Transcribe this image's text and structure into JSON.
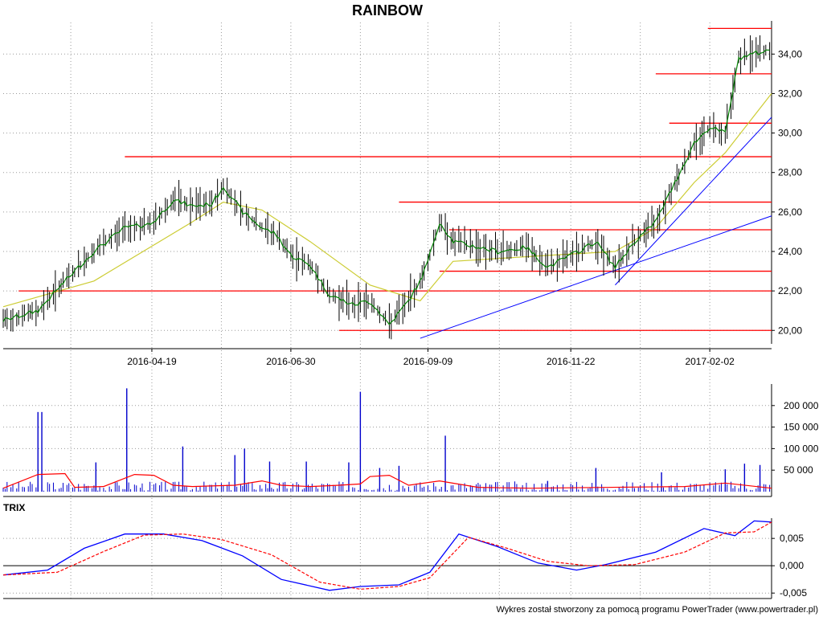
{
  "chart_data": [
    {
      "type": "line",
      "title": "RAINBOW",
      "xlabel": "",
      "ylabel": "",
      "x_tick_labels": [
        "2016-04-19",
        "2016-06-30",
        "2016-09-09",
        "2016-11-22",
        "2017-02-02"
      ],
      "y_tick_labels": [
        "20,00",
        "22,00",
        "24,00",
        "26,00",
        "28,00",
        "30,00",
        "32,00",
        "34,00"
      ],
      "ylim": [
        19.4,
        35.6
      ],
      "grid": true,
      "colors": {
        "price_bars": "#000000",
        "sma_short": "#008000",
        "sma_long": "#cccc33",
        "horizontal_levels": "#ff0000",
        "trendlines": "#0000ff"
      },
      "horizontal_levels": [
        20.0,
        22.0,
        23.0,
        25.1,
        26.5,
        28.8,
        30.5,
        33.0,
        35.3
      ],
      "price_path": {
        "x": [
          "2016-02-02",
          "2016-02-20",
          "2016-03-05",
          "2016-03-20",
          "2016-04-05",
          "2016-04-19",
          "2016-04-30",
          "2016-05-10",
          "2016-05-20",
          "2016-05-26",
          "2016-06-05",
          "2016-06-15",
          "2016-06-22",
          "2016-06-30",
          "2016-07-10",
          "2016-07-20",
          "2016-08-01",
          "2016-08-10",
          "2016-08-20",
          "2016-08-30",
          "2016-09-05",
          "2016-09-09",
          "2016-09-15",
          "2016-09-22",
          "2016-10-01",
          "2016-10-15",
          "2016-10-30",
          "2016-11-10",
          "2016-11-22",
          "2016-12-05",
          "2016-12-15",
          "2016-12-25",
          "2017-01-05",
          "2017-01-15",
          "2017-01-25",
          "2017-02-02",
          "2017-02-10",
          "2017-02-17",
          "2017-02-24",
          "2017-03-06"
        ],
        "close": [
          20.5,
          21.0,
          22.5,
          24.0,
          25.2,
          25.4,
          26.6,
          26.3,
          26.4,
          27.3,
          26.0,
          25.2,
          24.9,
          23.8,
          23.3,
          21.8,
          21.3,
          21.5,
          20.3,
          21.5,
          22.5,
          23.5,
          25.5,
          24.5,
          24.3,
          24.0,
          24.2,
          23.2,
          23.8,
          24.5,
          23.2,
          24.5,
          25.5,
          27.5,
          29.5,
          30.3,
          30.0,
          33.8,
          34.0,
          34.2
        ]
      },
      "sma_long": {
        "x": [
          "2016-02-02",
          "2016-03-20",
          "2016-05-10",
          "2016-05-26",
          "2016-06-15",
          "2016-07-10",
          "2016-08-10",
          "2016-09-05",
          "2016-09-22",
          "2016-11-10",
          "2016-12-15",
          "2017-01-05",
          "2017-01-25",
          "2017-02-10",
          "2017-03-06"
        ],
        "y": [
          21.2,
          22.5,
          25.5,
          26.5,
          26.1,
          24.5,
          22.3,
          21.5,
          23.5,
          23.8,
          24.0,
          25.2,
          27.5,
          29.0,
          32.0
        ]
      },
      "trendlines": [
        {
          "x": [
            "2016-09-05",
            "2017-03-06"
          ],
          "y": [
            19.6,
            25.8
          ]
        },
        {
          "x": [
            "2016-12-15",
            "2017-03-06"
          ],
          "y": [
            22.3,
            30.8
          ]
        }
      ]
    },
    {
      "type": "bar",
      "y_tick_labels": [
        "50 000",
        "100 000",
        "150 000",
        "200 000"
      ],
      "ylim": [
        0,
        250000
      ],
      "colors": {
        "volume_bars": "#0000cc",
        "volume_avg": "#ff0000"
      },
      "x": [
        "2016-02-20",
        "2016-02-22",
        "2016-03-21",
        "2016-04-06",
        "2016-05-05",
        "2016-06-01",
        "2016-06-06",
        "2016-06-19",
        "2016-07-08",
        "2016-07-30",
        "2016-08-05",
        "2016-08-15",
        "2016-08-25",
        "2016-09-18",
        "2016-11-10",
        "2016-12-05",
        "2017-01-08",
        "2017-02-10",
        "2017-02-20",
        "2017-02-28"
      ],
      "values": [
        185000,
        185000,
        68000,
        240000,
        105000,
        85000,
        100000,
        70000,
        70000,
        68000,
        232000,
        55000,
        60000,
        130000,
        25000,
        55000,
        45000,
        52000,
        65000,
        62000
      ],
      "volume_avg": {
        "x": [
          "2016-02-02",
          "2016-02-20",
          "2016-03-05",
          "2016-03-10",
          "2016-03-25",
          "2016-04-10",
          "2016-04-20",
          "2016-04-30",
          "2016-05-10",
          "2016-06-01",
          "2016-06-15",
          "2016-06-25",
          "2016-07-10",
          "2016-07-25",
          "2016-08-05",
          "2016-08-10",
          "2016-08-20",
          "2016-08-30",
          "2016-09-15",
          "2016-10-05",
          "2016-11-01",
          "2017-01-20",
          "2017-02-10",
          "2017-03-06"
        ],
        "y": [
          8000,
          40000,
          42000,
          10000,
          12000,
          40000,
          38000,
          15000,
          12000,
          15000,
          25000,
          15000,
          12000,
          15000,
          18000,
          35000,
          38000,
          15000,
          25000,
          10000,
          8000,
          12000,
          20000,
          8000
        ]
      }
    },
    {
      "type": "line",
      "title": "TRIX",
      "y_tick_labels": [
        "-0,005",
        "0,000",
        "0,005"
      ],
      "ylim": [
        -0.006,
        0.0087
      ],
      "colors": {
        "trix": "#0000ff",
        "signal": "#ff0000",
        "zero_line": "#000000"
      },
      "series": [
        {
          "x": [
            "2016-02-02",
            "2016-02-25",
            "2016-03-15",
            "2016-04-05",
            "2016-04-25",
            "2016-05-15",
            "2016-06-05",
            "2016-06-25",
            "2016-07-20",
            "2016-08-05",
            "2016-08-25",
            "2016-09-10",
            "2016-09-25",
            "2016-10-15",
            "2016-11-05",
            "2016-11-25",
            "2016-12-10",
            "2017-01-05",
            "2017-01-30",
            "2017-02-15",
            "2017-02-25",
            "2017-03-06"
          ],
          "y": [
            -0.0017,
            -0.0008,
            0.0032,
            0.0058,
            0.0058,
            0.0046,
            0.0018,
            -0.0025,
            -0.0045,
            -0.0038,
            -0.0035,
            -0.0012,
            0.0058,
            0.0035,
            0.0005,
            -0.0008,
            0.0002,
            0.0025,
            0.0068,
            0.0055,
            0.0082,
            0.008
          ]
        },
        {
          "x": [
            "2016-02-02",
            "2016-03-01",
            "2016-03-25",
            "2016-04-15",
            "2016-05-05",
            "2016-05-25",
            "2016-06-20",
            "2016-07-15",
            "2016-08-05",
            "2016-08-25",
            "2016-09-10",
            "2016-09-30",
            "2016-10-20",
            "2016-11-10",
            "2016-12-01",
            "2016-12-25",
            "2017-01-20",
            "2017-02-10",
            "2017-02-25",
            "2017-03-06"
          ],
          "y": [
            -0.0017,
            -0.0012,
            0.0026,
            0.0056,
            0.0058,
            0.0048,
            0.002,
            -0.003,
            -0.0043,
            -0.0038,
            -0.0022,
            0.0052,
            0.0032,
            0.0008,
            0.0,
            0.0002,
            0.0025,
            0.006,
            0.0062,
            0.008
          ]
        }
      ]
    }
  ],
  "footer": "Wykres został stworzony za pomocą programu PowerTrader (www.powertrader.pl)"
}
